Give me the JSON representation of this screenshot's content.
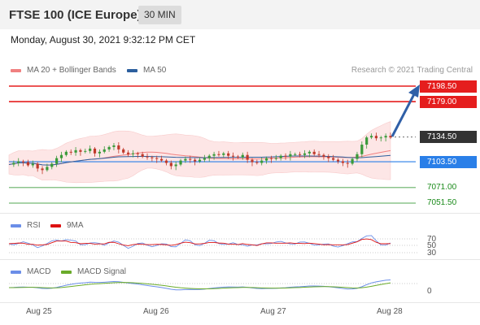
{
  "header": {
    "title": "FTSE 100 (ICE Europe)",
    "timeframe": "30 MIN"
  },
  "datetime": "Monday, August 30, 2021 9:32:12 PM CET",
  "legend": {
    "ma20": {
      "label": "MA 20 + Bollinger Bands",
      "color": "#f08080"
    },
    "ma50": {
      "label": "MA 50",
      "color": "#2c5f9e"
    }
  },
  "credit": "Research © 2021 Trading Central",
  "levels": {
    "resistance2": "7198.50",
    "resistance1": "7179.00",
    "last": "7134.50",
    "pivot": "7103.50",
    "support1": "7071.00",
    "support2": "7051.50"
  },
  "rsi": {
    "legend": {
      "rsi": "RSI",
      "ma": "9MA"
    },
    "levels": [
      "70",
      "50",
      "30"
    ]
  },
  "macd": {
    "legend": {
      "macd": "MACD",
      "signal": "MACD Signal"
    },
    "zero_label": "0"
  },
  "xaxis": {
    "ticks": [
      "Aug 25",
      "Aug 26",
      "Aug 27",
      "Aug 28"
    ]
  },
  "colors": {
    "resistance": "#e51e1e",
    "support": "#1a8a1a",
    "pivot": "#2a7fe8",
    "up_candle": "#3a9a3a",
    "down_candle": "#c0392b",
    "arrow": "#2f5fa7",
    "bollinger_fill": "#fde4e4",
    "rsi_line": "#6b8ee8",
    "rsi_ma": "#d11",
    "macd_line": "#6b8ee8",
    "macd_signal": "#6aab2a"
  },
  "chart_data": [
    {
      "type": "candlestick",
      "title": "FTSE 100 (ICE Europe)",
      "timeframe": "30 MIN",
      "x_ticks": [
        "Aug 25",
        "Aug 26",
        "Aug 27",
        "Aug 28"
      ],
      "ylim": [
        7040,
        7210
      ],
      "horizontal_levels": [
        {
          "name": "resistance 2",
          "value": 7198.5
        },
        {
          "name": "resistance 1",
          "value": 7179.0
        },
        {
          "name": "last",
          "value": 7134.5
        },
        {
          "name": "pivot",
          "value": 7103.5
        },
        {
          "name": "support 1",
          "value": 7071.0
        },
        {
          "name": "support 2",
          "value": 7051.5
        }
      ],
      "close_series": [
        7100,
        7102,
        7104,
        7103,
        7099,
        7101,
        7095,
        7093,
        7097,
        7101,
        7108,
        7112,
        7116,
        7115,
        7118,
        7116,
        7117,
        7120,
        7114,
        7116,
        7119,
        7122,
        7124,
        7119,
        7115,
        7113,
        7114,
        7113,
        7110,
        7109,
        7108,
        7107,
        7105,
        7102,
        7098,
        7100,
        7105,
        7107,
        7106,
        7104,
        7106,
        7108,
        7111,
        7113,
        7112,
        7114,
        7111,
        7110,
        7109,
        7112,
        7106,
        7103,
        7102,
        7105,
        7108,
        7107,
        7108,
        7111,
        7110,
        7113,
        7113,
        7112,
        7114,
        7116,
        7113,
        7112,
        7110,
        7108,
        7106,
        7104,
        7102,
        7101,
        7107,
        7113,
        7125,
        7134,
        7136,
        7133,
        7134,
        7136,
        7134
      ]
    },
    {
      "type": "line",
      "name": "RSI",
      "levels": [
        70,
        50,
        30
      ],
      "series_names": [
        "RSI",
        "9MA"
      ]
    },
    {
      "type": "line",
      "name": "MACD",
      "series_names": [
        "MACD",
        "MACD Signal"
      ],
      "zero_line": 0
    }
  ]
}
